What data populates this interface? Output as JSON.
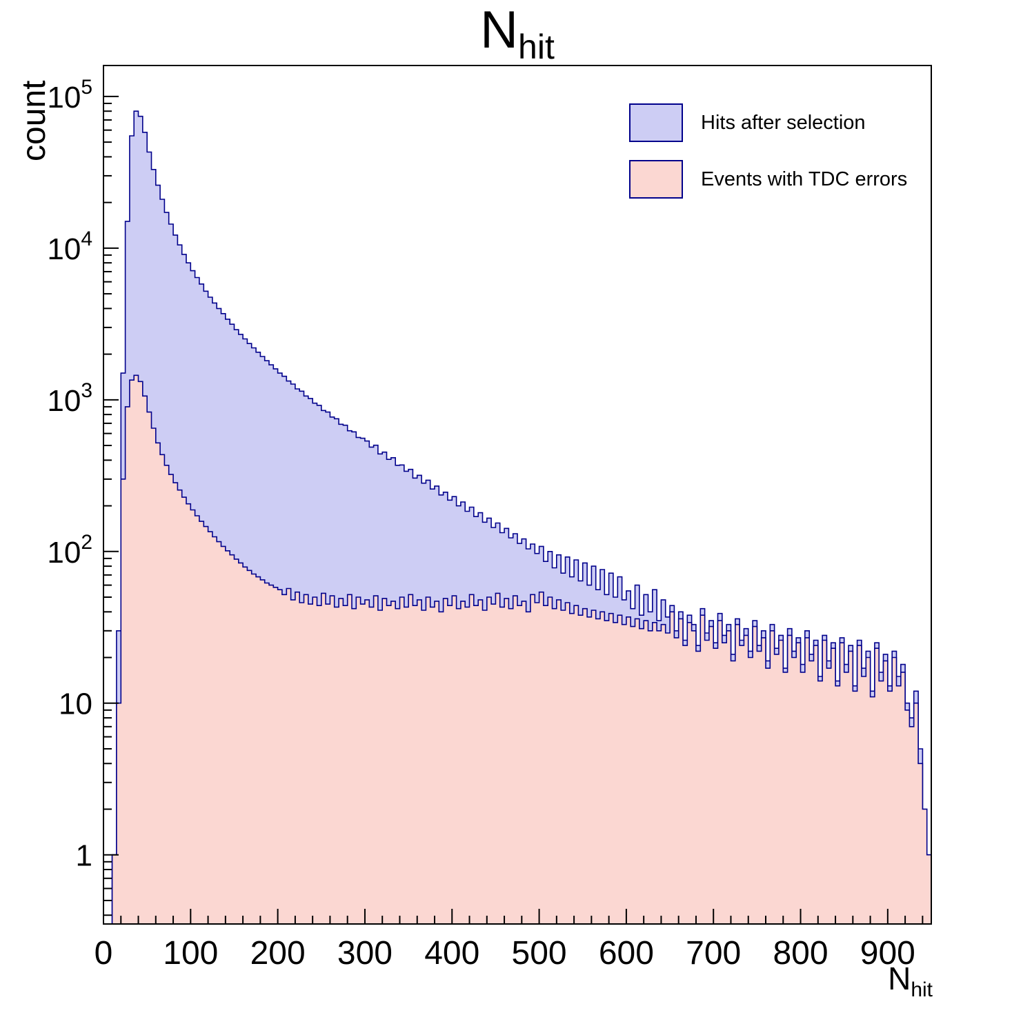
{
  "chart_data": {
    "type": "histogram",
    "title": {
      "main": "N",
      "sub": "hit"
    },
    "ylabel": "count",
    "xlabel": {
      "main": "N",
      "sub": "hit"
    },
    "x_axis": {
      "min": 0,
      "max": 950,
      "major_ticks": [
        0,
        100,
        200,
        300,
        400,
        500,
        600,
        700,
        800,
        900
      ],
      "minor_step": 20
    },
    "y_axis": {
      "scale": "log",
      "min": 0.35,
      "max": 160000,
      "major_ticks": [
        1,
        10,
        100,
        1000,
        10000,
        100000
      ],
      "major_labels": [
        "1",
        "10",
        "10^2",
        "10^3",
        "10^4",
        "10^5"
      ]
    },
    "series": [
      {
        "name": "Hits after selection",
        "fill": "#cdcdf4",
        "stroke": "#00008b",
        "x0": 0,
        "dx": 5,
        "counts": [
          0,
          0,
          1,
          30,
          1500,
          15000,
          55000,
          80000,
          74000,
          58000,
          43000,
          33000,
          26000,
          21000,
          17200,
          14400,
          12200,
          10500,
          9100,
          8000,
          7100,
          6400,
          5800,
          5200,
          4750,
          4350,
          4000,
          3700,
          3400,
          3150,
          2900,
          2700,
          2520,
          2350,
          2200,
          2060,
          1930,
          1810,
          1700,
          1600,
          1500,
          1430,
          1330,
          1270,
          1180,
          1140,
          1060,
          1020,
          950,
          920,
          850,
          830,
          770,
          750,
          690,
          680,
          625,
          615,
          565,
          558,
          535,
          488,
          502,
          440,
          452,
          405,
          415,
          370,
          372,
          338,
          348,
          305,
          318,
          282,
          295,
          258,
          270,
          236,
          246,
          218,
          230,
          200,
          212,
          184,
          196,
          170,
          180,
          156,
          166,
          144,
          154,
          133,
          142,
          123,
          131,
          113,
          121,
          104,
          112,
          97,
          108,
          86,
          100,
          78,
          95,
          72,
          92,
          68,
          88,
          64,
          84,
          60,
          80,
          56,
          76,
          52,
          72,
          50,
          68,
          48,
          55,
          42,
          60,
          38,
          52,
          40,
          56,
          35,
          48,
          37,
          44,
          30,
          40,
          26,
          38,
          33,
          24,
          42,
          29,
          35,
          25,
          39,
          28,
          33,
          21,
          36,
          26,
          31,
          22,
          35,
          24,
          30,
          19,
          33,
          23,
          28,
          17,
          31,
          22,
          27,
          18,
          30,
          21,
          26,
          15,
          28,
          19,
          25,
          14,
          27,
          18,
          24,
          13,
          26,
          17,
          22,
          12,
          25,
          16,
          21,
          13,
          22,
          15,
          18,
          10,
          8,
          12,
          5,
          2,
          1
        ]
      },
      {
        "name": "Events with TDC errors",
        "fill": "#fbd7d2",
        "stroke": "#00008b",
        "x0": 0,
        "dx": 5,
        "counts": [
          0,
          0,
          1,
          10,
          300,
          900,
          1350,
          1450,
          1320,
          1060,
          830,
          650,
          520,
          435,
          370,
          322,
          284,
          254,
          228,
          206,
          188,
          172,
          158,
          146,
          135,
          125,
          116,
          108,
          101,
          95,
          89,
          84,
          79,
          75,
          71,
          68,
          65,
          62,
          60,
          58,
          56,
          52,
          57,
          48,
          54,
          46,
          52,
          45,
          50,
          44,
          53,
          45,
          51,
          43,
          49,
          44,
          52,
          42,
          50,
          45,
          48,
          43,
          51,
          41,
          49,
          44,
          47,
          42,
          50,
          43,
          52,
          44,
          48,
          41,
          50,
          43,
          47,
          40,
          49,
          44,
          51,
          42,
          47,
          43,
          52,
          44,
          48,
          41,
          50,
          45,
          53,
          43,
          49,
          42,
          51,
          44,
          47,
          40,
          52,
          46,
          54,
          44,
          50,
          42,
          48,
          41,
          46,
          39,
          44,
          38,
          42,
          37,
          41,
          36,
          40,
          35,
          39,
          34,
          38,
          33,
          37,
          32,
          36,
          31,
          35,
          30,
          34,
          30,
          33,
          29,
          40,
          27,
          36,
          24,
          34,
          30,
          22,
          38,
          26,
          32,
          23,
          35,
          25,
          30,
          19,
          33,
          24,
          28,
          20,
          32,
          22,
          27,
          17,
          30,
          21,
          26,
          16,
          28,
          20,
          25,
          16,
          27,
          19,
          24,
          14,
          26,
          17,
          23,
          13,
          25,
          16,
          22,
          12,
          24,
          15,
          20,
          11,
          23,
          14,
          19,
          12,
          20,
          13,
          16,
          9,
          7,
          10,
          4,
          2,
          1
        ]
      }
    ],
    "legend": {
      "entries": [
        {
          "label": "Hits after selection",
          "swatch_fill": "#cdcdf4",
          "swatch_stroke": "#00008b"
        },
        {
          "label": "Events with TDC errors",
          "swatch_fill": "#fbd7d2",
          "swatch_stroke": "#00008b"
        }
      ]
    },
    "frame": {
      "background": "#ffffff",
      "axis_color": "#000000"
    }
  }
}
